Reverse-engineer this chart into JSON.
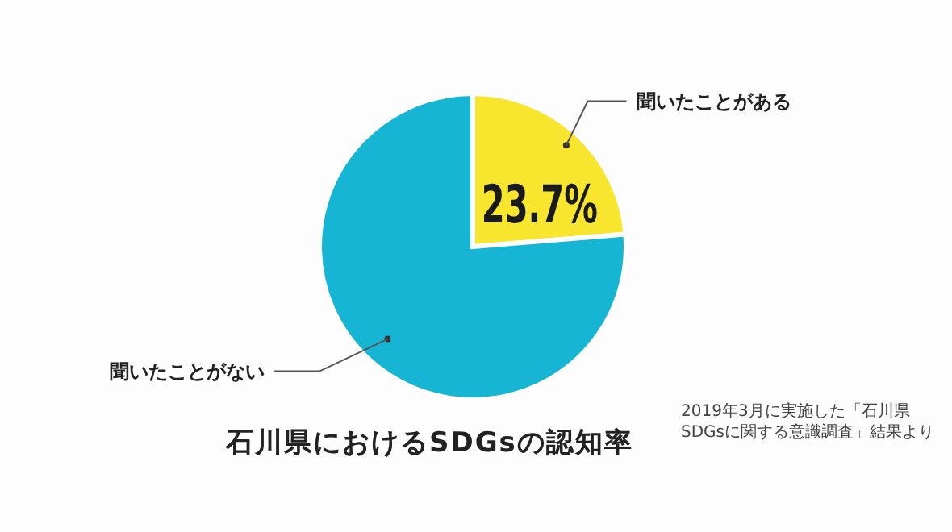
{
  "chart_data": {
    "type": "pie",
    "title": "石川県におけるSDGsの認知率",
    "categories": [
      "聞いたことがある",
      "聞いたことがない"
    ],
    "values": [
      23.7,
      76.3
    ],
    "colors": [
      "#f8e52e",
      "#16b5d3"
    ],
    "value_labels": [
      "23.7%",
      null
    ],
    "legend": false,
    "annotations": [
      "2019年3月に実施した「石川県 SDGsに関する意識調査」結果より"
    ]
  }
}
